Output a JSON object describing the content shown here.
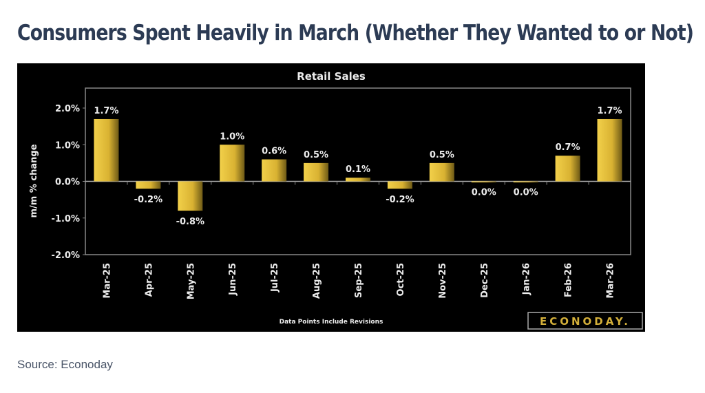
{
  "headline": "Consumers Spent Heavily in March (Whether They Wanted to or Not)",
  "source": "Source: Econoday",
  "chart_data": {
    "type": "bar",
    "title": "Retail Sales",
    "ylabel": "m/m % change",
    "xlabel": "",
    "footnote": "Data Points Include Revisions",
    "logo": "ECONODAY.",
    "categories": [
      "Mar-25",
      "Apr-25",
      "May-25",
      "Jun-25",
      "Jul-25",
      "Aug-25",
      "Sep-25",
      "Oct-25",
      "Nov-25",
      "Dec-25",
      "Jan-26",
      "Feb-26",
      "Mar-26"
    ],
    "values": [
      1.7,
      -0.2,
      -0.8,
      1.0,
      0.6,
      0.5,
      0.1,
      -0.2,
      0.5,
      0.0,
      0.0,
      0.7,
      1.7
    ],
    "data_labels": [
      "1.7%",
      "-0.2%",
      "-0.8%",
      "1.0%",
      "0.6%",
      "0.5%",
      "0.1%",
      "-0.2%",
      "0.5%",
      "0.0%",
      "0.0%",
      "0.7%",
      "1.7%"
    ],
    "ylim": [
      -2.0,
      2.0
    ],
    "yticks": [
      "2.0%",
      "1.0%",
      "0.0%",
      "-1.0%",
      "-2.0%"
    ],
    "ytick_values": [
      2.0,
      1.0,
      0.0,
      -1.0,
      -2.0
    ],
    "grid": false,
    "colors": {
      "background": "#000000",
      "bar": "#e8c53a",
      "text": "#ececec"
    }
  }
}
